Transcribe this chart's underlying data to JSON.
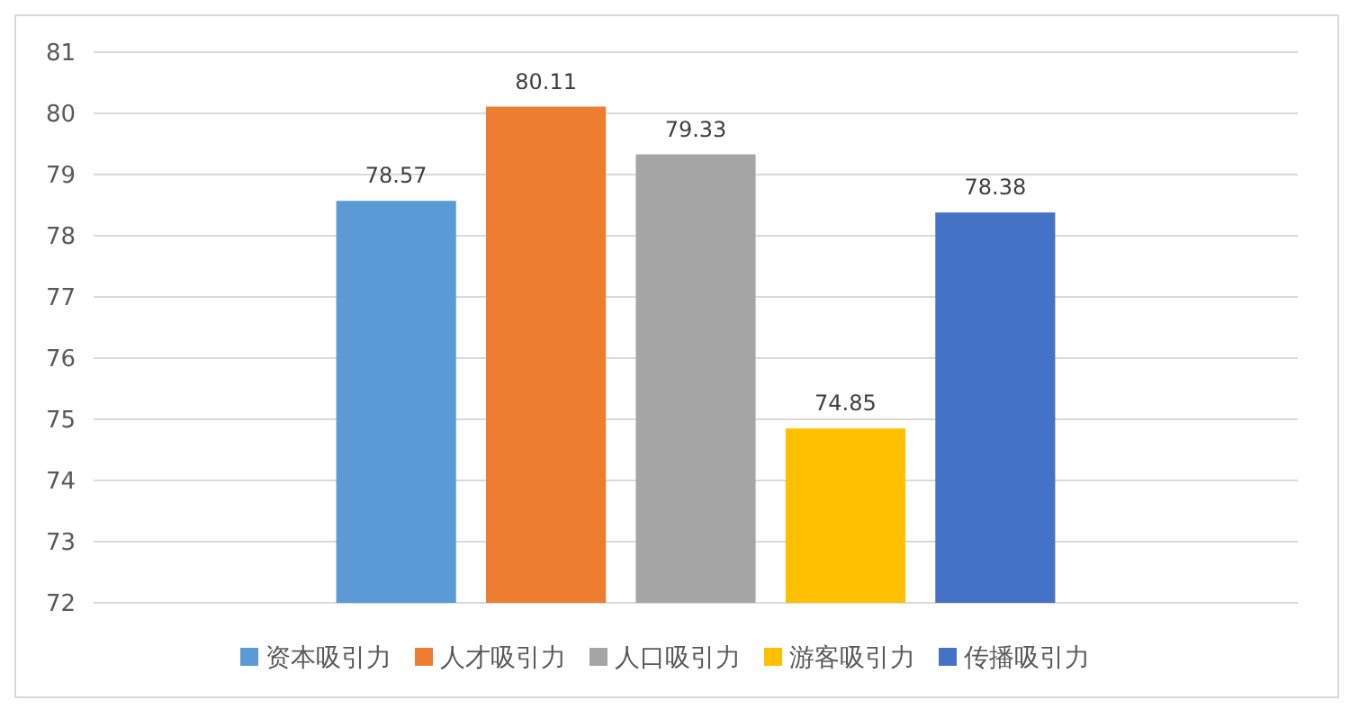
{
  "chart_data": {
    "type": "bar",
    "categories": [
      null
    ],
    "series": [
      {
        "name": "资本吸引力",
        "color": "#5b9bd5",
        "values": [
          78.57
        ]
      },
      {
        "name": "人才吸引力",
        "color": "#ed7d31",
        "values": [
          80.11
        ]
      },
      {
        "name": "人口吸引力",
        "color": "#a5a5a5",
        "values": [
          79.33
        ]
      },
      {
        "name": "游客吸引力",
        "color": "#ffc000",
        "values": [
          74.85
        ]
      },
      {
        "name": "传播吸引力",
        "color": "#4472c4",
        "values": [
          78.38
        ]
      }
    ],
    "ylim": [
      72,
      81
    ],
    "yticks": [
      72,
      73,
      74,
      75,
      76,
      77,
      78,
      79,
      80,
      81
    ],
    "grid": "y",
    "legend": "bottom",
    "data_labels": true
  }
}
